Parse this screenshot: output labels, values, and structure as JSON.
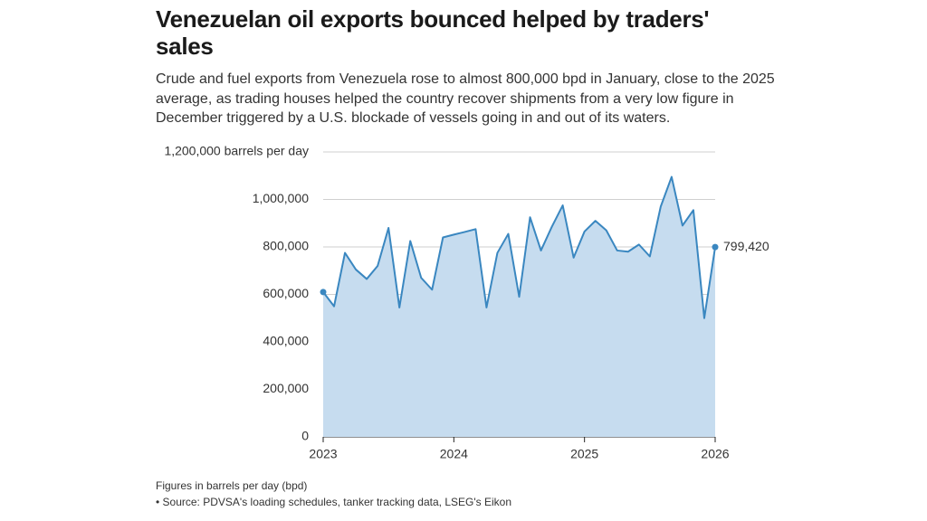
{
  "chart_data": {
    "type": "area",
    "title": "Venezuelan oil exports bounced helped by traders' sales",
    "subtitle": "Crude and fuel exports from Venezuela rose to almost 800,000 bpd in January, close to the 2025 average, as trading houses helped the country recover shipments from a very low figure in December triggered by a U.S. blockade of vessels going in and out of its waters.",
    "categories": [
      "2023",
      null,
      null,
      null,
      null,
      null,
      null,
      null,
      null,
      null,
      null,
      null,
      "2024",
      null,
      null,
      null,
      null,
      null,
      null,
      null,
      null,
      null,
      null,
      null,
      "2025",
      null,
      null,
      null,
      null,
      null,
      null,
      null,
      null,
      null,
      null,
      null,
      "2026"
    ],
    "series": [
      {
        "name": "Crude and fuel exports",
        "color": "#3a87c0",
        "values": [
          610000,
          550000,
          775000,
          705000,
          665000,
          720000,
          880000,
          545000,
          825000,
          670000,
          620000,
          840000,
          852000,
          863000,
          875000,
          545000,
          775000,
          855000,
          590000,
          925000,
          785000,
          885000,
          975000,
          755000,
          865000,
          910000,
          870000,
          785000,
          780000,
          810000,
          760000,
          970000,
          1095000,
          890000,
          955000,
          500000,
          799420
        ],
        "value_labels": [
          null,
          null,
          null,
          null,
          null,
          null,
          null,
          null,
          null,
          null,
          null,
          null,
          null,
          null,
          null,
          null,
          null,
          null,
          null,
          null,
          null,
          null,
          null,
          null,
          null,
          null,
          null,
          null,
          null,
          null,
          null,
          null,
          null,
          null,
          null,
          null,
          "799,420"
        ]
      }
    ],
    "area_color": "#c6dcef",
    "ylim": [
      0,
      1200000
    ],
    "yticks": [
      {
        "value": 0,
        "label": "0"
      },
      {
        "value": 200000,
        "label": "200,000"
      },
      {
        "value": 400000,
        "label": "400,000"
      },
      {
        "value": 600000,
        "label": "600,000"
      },
      {
        "value": 800000,
        "label": "800,000"
      },
      {
        "value": 1000000,
        "label": "1,000,000"
      },
      {
        "value": 1200000,
        "label": "1,200,000 barrels per day"
      }
    ],
    "grid": true,
    "note": "Figures in barrels per day (bpd)",
    "source": "• Source: PDVSA's loading schedules, tanker tracking data, LSEG's Eikon"
  }
}
